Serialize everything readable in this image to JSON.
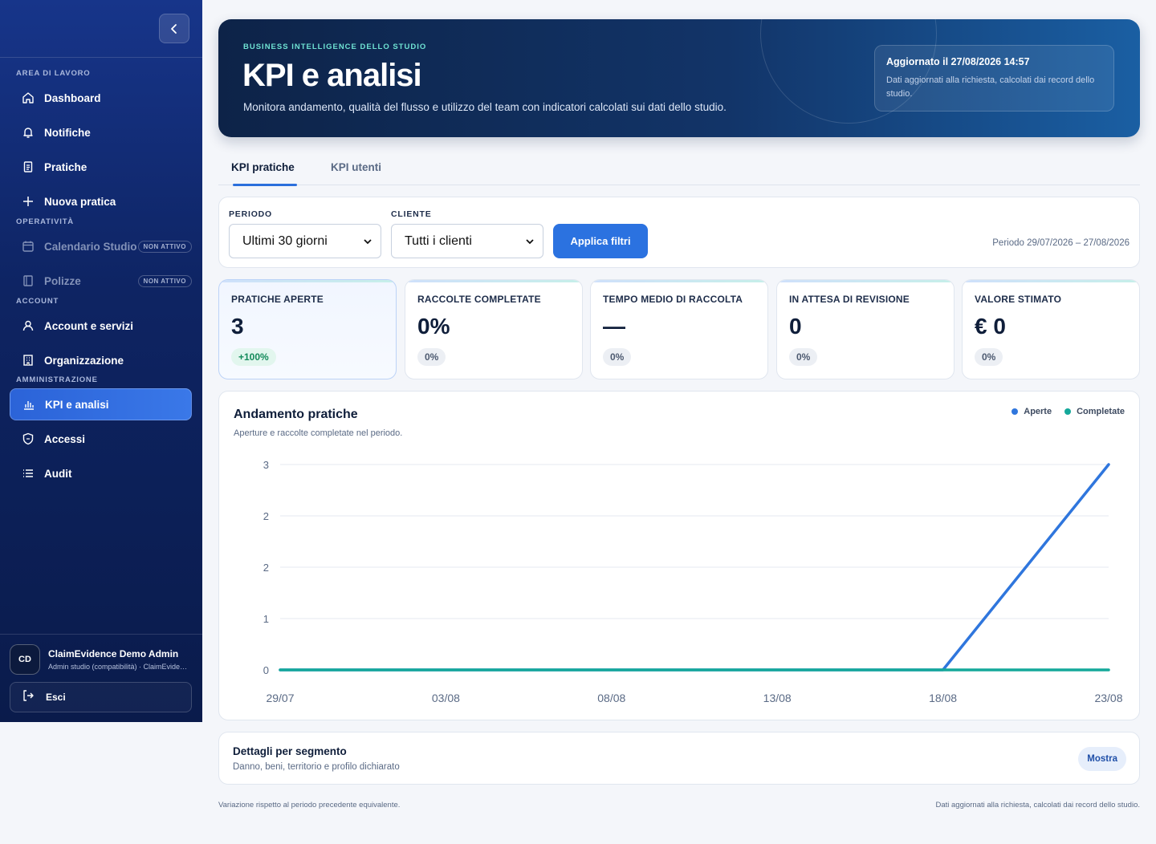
{
  "sidebar": {
    "sections": {
      "workspace": "AREA DI LAVORO",
      "operations": "OPERATIVITÀ",
      "account": "ACCOUNT",
      "admin": "AMMINISTRAZIONE"
    },
    "items": [
      {
        "label": "Dashboard",
        "icon": "home-icon"
      },
      {
        "label": "Notifiche",
        "icon": "bell-icon"
      },
      {
        "label": "Pratiche",
        "icon": "document-icon"
      },
      {
        "label": "Nuova pratica",
        "icon": "plus-icon"
      },
      {
        "label": "Calendario Studio",
        "icon": "calendar-icon",
        "badge": "NON ATTIVO"
      },
      {
        "label": "Polizze",
        "icon": "policy-icon",
        "badge": "NON ATTIVO"
      },
      {
        "label": "Account e servizi",
        "icon": "user-icon"
      },
      {
        "label": "Organizzazione",
        "icon": "building-icon"
      },
      {
        "label": "KPI e analisi",
        "icon": "bar-chart-icon",
        "active": true
      },
      {
        "label": "Accessi",
        "icon": "shield-icon"
      },
      {
        "label": "Audit",
        "icon": "list-icon"
      }
    ],
    "user": {
      "initials": "CD",
      "name": "ClaimEvidence Demo Admin",
      "role": "Admin studio (compatibilità) · ClaimEvidence"
    },
    "logout_label": "Esci"
  },
  "hero": {
    "kicker": "BUSINESS INTELLIGENCE DELLO STUDIO",
    "title": "KPI e analisi",
    "subtitle": "Monitora andamento, qualità del flusso e utilizzo del team con indicatori calcolati sui dati dello studio.",
    "updated_title": "Aggiornato il 27/08/2026 14:57",
    "updated_desc": "Dati aggiornati alla richiesta, calcolati dai record dello studio."
  },
  "tabs": [
    "KPI pratiche",
    "KPI utenti"
  ],
  "filters": {
    "period_label": "PERIODO",
    "period_value": "Ultimi 30 giorni",
    "client_label": "CLIENTE",
    "client_value": "Tutti i clienti",
    "apply_label": "Applica filtri",
    "period_range": "Periodo 29/07/2026 – 27/08/2026"
  },
  "kpis": [
    {
      "label": "PRATICHE APERTE",
      "value": "3",
      "delta": "+100%"
    },
    {
      "label": "RACCOLTE COMPLETATE",
      "value": "0%",
      "delta": "0%"
    },
    {
      "label": "TEMPO MEDIO DI RACCOLTA",
      "value": "—",
      "delta": "0%"
    },
    {
      "label": "IN ATTESA DI REVISIONE",
      "value": "0",
      "delta": "0%"
    },
    {
      "label": "VALORE STIMATO",
      "value": "€ 0",
      "delta": "0%"
    }
  ],
  "chart": {
    "title": "Andamento pratiche",
    "subtitle": "Aperture e raccolte completate nel periodo."
  },
  "chart_data": {
    "type": "line",
    "x": [
      "29/07",
      "03/08",
      "08/08",
      "13/08",
      "18/08",
      "23/08"
    ],
    "ytick_labels": [
      "0",
      "1",
      "2",
      "2",
      "3"
    ],
    "ylim": [
      0,
      3
    ],
    "grid": true,
    "legend": "top-right",
    "series": [
      {
        "name": "Aperte",
        "color": "#2f76dd",
        "values": [
          0,
          0,
          0,
          0,
          0,
          3
        ]
      },
      {
        "name": "Completate",
        "color": "#14a89a",
        "values": [
          0,
          0,
          0,
          0,
          0,
          0
        ]
      }
    ]
  },
  "segment": {
    "title": "Dettagli per segmento",
    "subtitle": "Danno, beni, territorio e profilo dichiarato",
    "show_label": "Mostra"
  },
  "footer": {
    "left": "Variazione rispetto al periodo precedente equivalente.",
    "right": "Dati aggiornati alla richiesta, calcolati dai record dello studio."
  },
  "colors": {
    "accent": "#2b72e0",
    "sidebar": "#0e2463",
    "teal": "#14a89a"
  }
}
